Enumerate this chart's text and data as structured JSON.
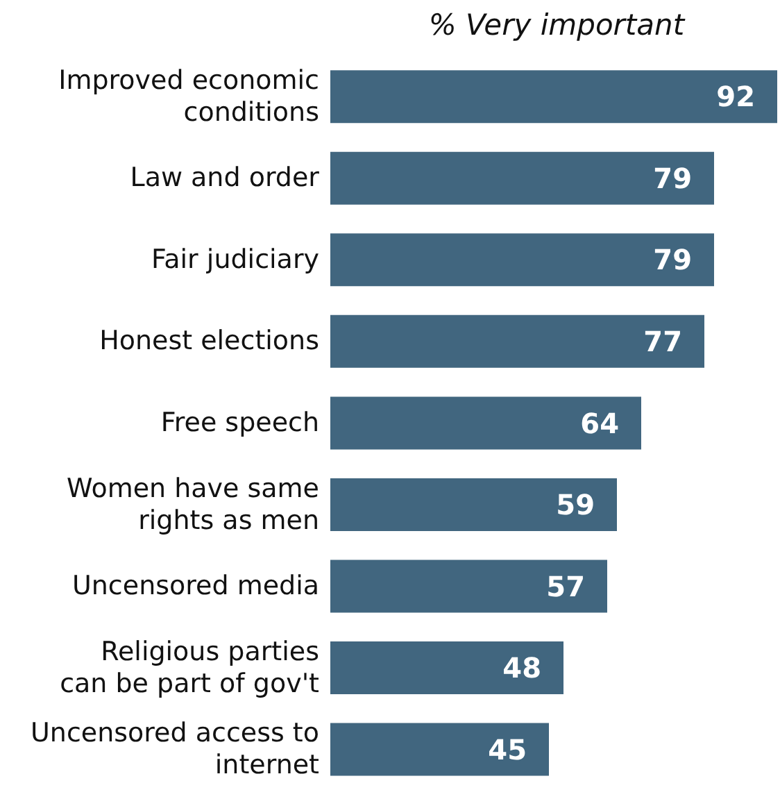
{
  "chart_data": {
    "type": "bar",
    "orientation": "horizontal",
    "title": "% Very important",
    "categories": [
      "Improved economic conditions",
      "Law and order",
      "Fair judiciary",
      "Honest elections",
      "Free speech",
      "Women have same rights as men",
      "Uncensored media",
      "Religious parties can be part of gov't",
      "Uncensored access to internet"
    ],
    "values": [
      92,
      79,
      79,
      77,
      64,
      59,
      57,
      48,
      45
    ],
    "color": "#41667f",
    "data_labels": true,
    "tick_labels": "y",
    "grid": false,
    "legend": false
  }
}
